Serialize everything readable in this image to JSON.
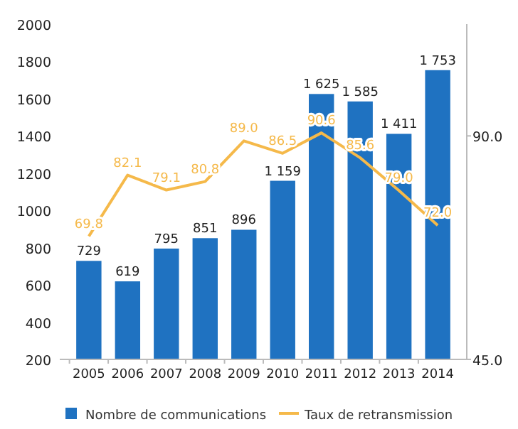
{
  "chart_data": {
    "type": "bar",
    "categories": [
      "2005",
      "2006",
      "2007",
      "2008",
      "2009",
      "2010",
      "2011",
      "2012",
      "2013",
      "2014"
    ],
    "series": [
      {
        "name": "Nombre de communications",
        "color": "#1f72c1",
        "values": [
          729,
          619,
          795,
          851,
          896,
          1159,
          1625,
          1585,
          1411,
          1753
        ],
        "value_labels": [
          "729",
          "619",
          "795",
          "851",
          "896",
          "1 159",
          "1 625",
          "1 585",
          "1 411",
          "1 753"
        ]
      },
      {
        "name": "Taux de retransmission",
        "type": "line",
        "axis": "y2",
        "color": "#f5b94a",
        "values": [
          69.8,
          82.1,
          79.1,
          80.8,
          89.0,
          86.5,
          90.6,
          85.6,
          79.0,
          72.0
        ],
        "value_labels": [
          "69.8",
          "82.1",
          "79.1",
          "80.8",
          "89.0",
          "86.5",
          "90.6",
          "85.6",
          "79.0",
          "72.0"
        ]
      }
    ],
    "ylim": [
      200,
      2000
    ],
    "yticks": [
      200,
      400,
      600,
      800,
      1000,
      1200,
      1400,
      1600,
      1800,
      2000
    ],
    "y2lim": [
      45,
      112.5
    ],
    "y2ticks": [
      {
        "value": 45,
        "label": "45.0"
      },
      {
        "value": 90,
        "label": "90.0"
      }
    ],
    "grid": false,
    "legend": "bottom",
    "marker": "none",
    "line_style": "solid"
  }
}
